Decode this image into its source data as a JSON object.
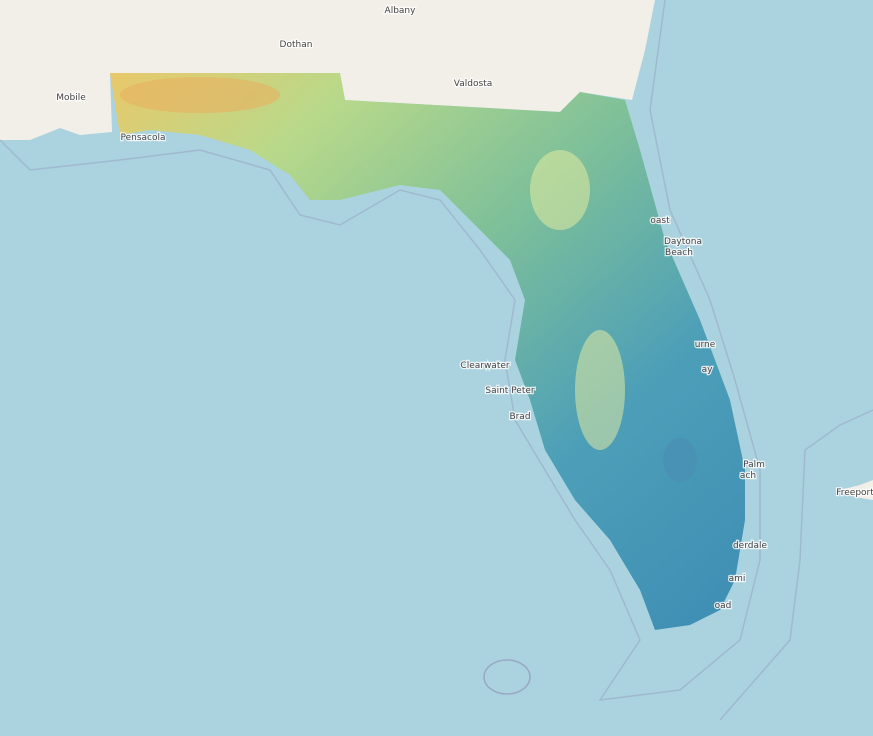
{
  "map": {
    "labels": [
      "Albany",
      "Dothan",
      "Mobile",
      "Valdosta",
      "Pensacola",
      "Clearwater",
      "Saint Peter",
      "Brad",
      "Daytona",
      "Beach",
      "oast",
      "urne",
      "ay",
      "Palm",
      "ach",
      "derdale",
      "ami",
      "oad",
      "Freeport"
    ]
  }
}
